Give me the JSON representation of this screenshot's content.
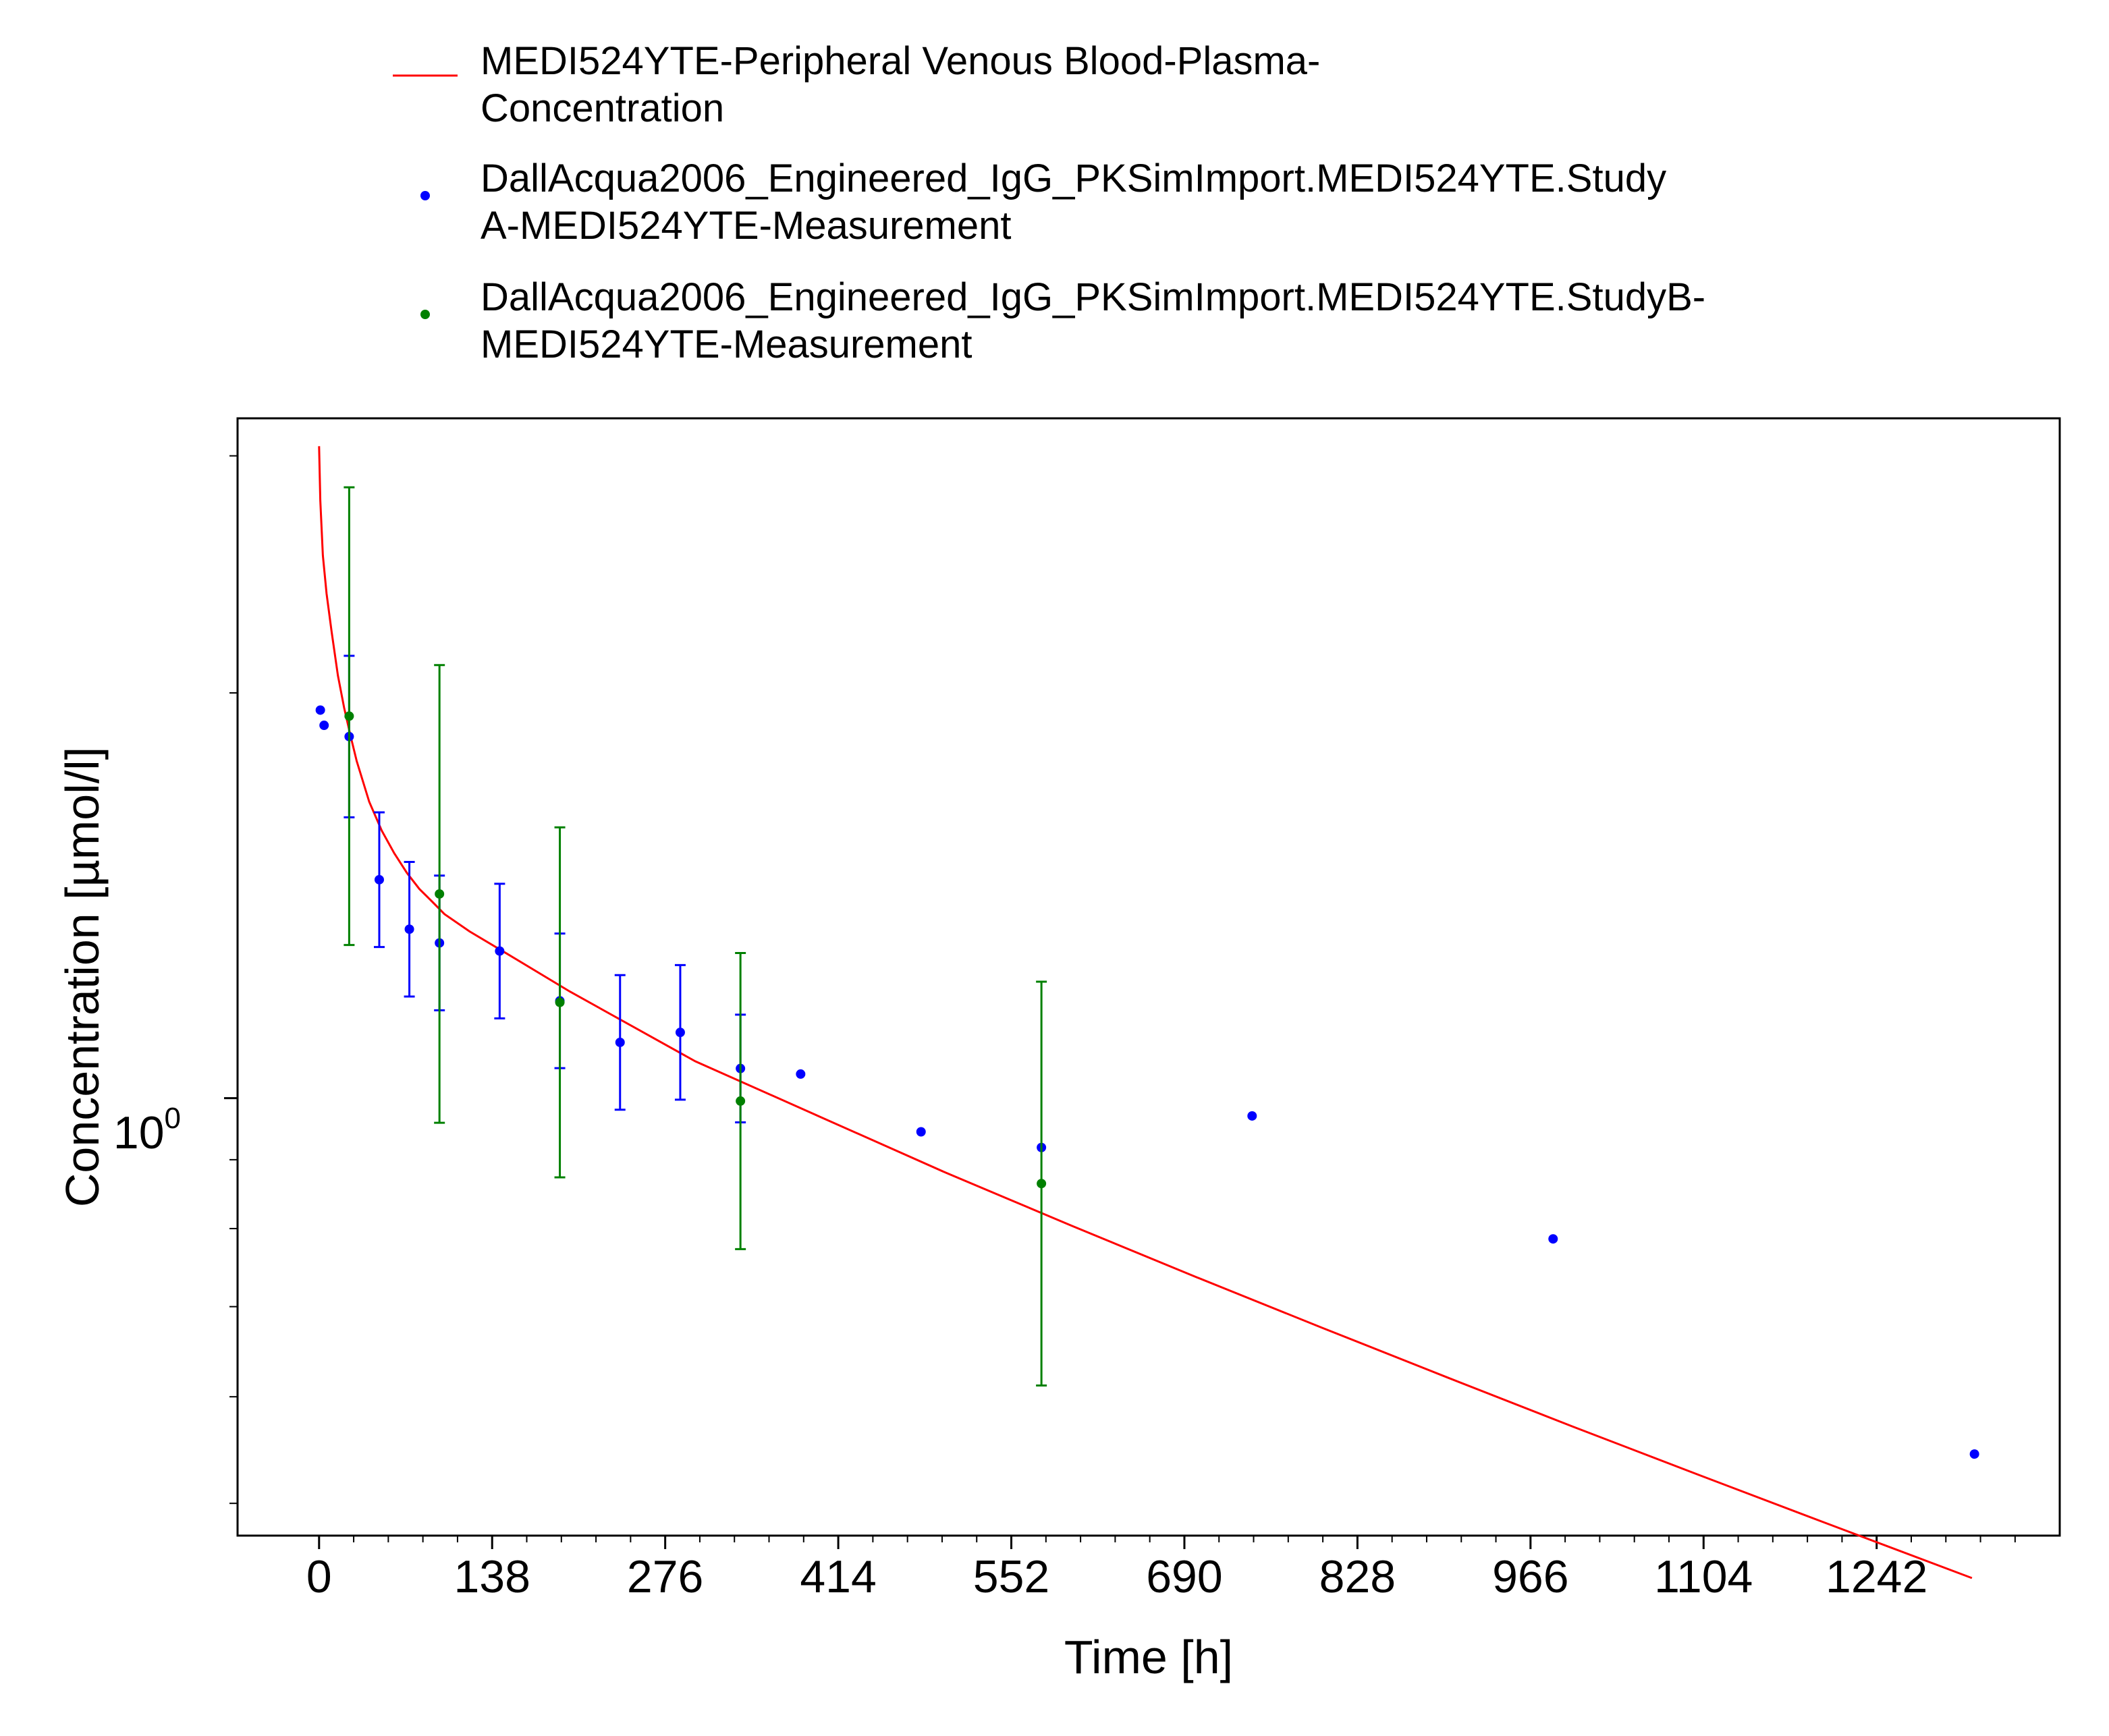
{
  "chart_data": {
    "type": "scatter",
    "xlabel": "Time [h]",
    "ylabel": "Concentration [µmol/l]",
    "x_range": [
      -65,
      1388
    ],
    "y_range_log10": [
      -0.325,
      0.505
    ],
    "y_scale": "log",
    "x_ticks": [
      0,
      138,
      276,
      414,
      552,
      690,
      828,
      966,
      1104,
      1242
    ],
    "x_tick_labels": [
      "0",
      "138",
      "276",
      "414",
      "552",
      "690",
      "828",
      "966",
      "1104",
      "1242"
    ],
    "y_tick_label": {
      "base": "10",
      "exponent": "0",
      "value": 1.0
    },
    "grid": false,
    "legend_position": "top",
    "series": [
      {
        "name": "MEDI524YTE-Peripheral Venous Blood-Plasma-Concentration",
        "legend_lines": [
          "MEDI524YTE-Peripheral Venous Blood-Plasma-",
          "Concentration"
        ],
        "kind": "line",
        "color": "#ff0000",
        "x": [
          0,
          1,
          3,
          6,
          10,
          15,
          20,
          25,
          30,
          40,
          50,
          60,
          70,
          80,
          90,
          100,
          120,
          150,
          200,
          300,
          400,
          500,
          600,
          700,
          800,
          900,
          1000,
          1100,
          1200,
          1318
        ],
        "y": [
          3.05,
          2.78,
          2.53,
          2.37,
          2.22,
          2.06,
          1.95,
          1.86,
          1.78,
          1.66,
          1.58,
          1.52,
          1.47,
          1.43,
          1.4,
          1.37,
          1.33,
          1.28,
          1.2,
          1.065,
          0.968,
          0.88,
          0.804,
          0.736,
          0.675,
          0.62,
          0.57,
          0.525,
          0.484,
          0.44
        ]
      },
      {
        "name": "DallAcqua2006_Engineered_IgG_PKSimImport.MEDI524YTE.StudyA-MEDI524YTE-Measurement",
        "legend_lines": [
          "DallAcqua2006_Engineered_IgG_PKSimImport.MEDI524YTE.Study",
          "A-MEDI524YTE-Measurement"
        ],
        "kind": "points",
        "color": "#0000ff",
        "x": [
          1,
          4,
          24,
          48,
          72,
          96,
          144,
          192,
          240,
          288,
          336,
          384,
          480,
          576,
          744,
          984,
          1320
        ],
        "y": [
          1.942,
          1.892,
          1.856,
          1.453,
          1.335,
          1.304,
          1.286,
          1.181,
          1.1,
          1.119,
          1.052,
          1.042,
          0.944,
          0.919,
          0.97,
          0.786,
          0.544
        ],
        "error": [
          null,
          null,
          0.06,
          0.05,
          0.05,
          0.05,
          0.05,
          0.05,
          0.05,
          0.05,
          0.04,
          null,
          null,
          null,
          null,
          null,
          null
        ]
      },
      {
        "name": "DallAcqua2006_Engineered_IgG_PKSimImport.MEDI524YTE.StudyB-MEDI524YTE-Measurement",
        "legend_lines": [
          "DallAcqua2006_Engineered_IgG_PKSimImport.MEDI524YTE.StudyB-",
          "MEDI524YTE-Measurement"
        ],
        "kind": "points",
        "color": "#008000",
        "x": [
          24,
          96,
          192,
          336,
          576
        ],
        "y": [
          1.922,
          1.418,
          1.178,
          0.995,
          0.864
        ],
        "error": [
          0.17,
          0.17,
          0.13,
          0.11,
          0.15
        ]
      }
    ]
  }
}
